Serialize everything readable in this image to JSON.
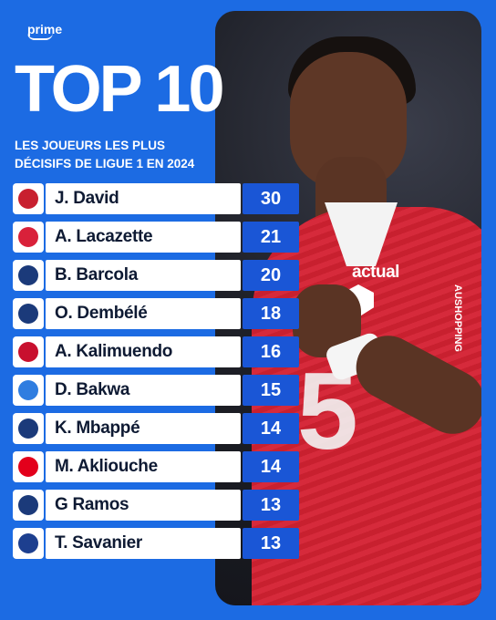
{
  "brand": {
    "name": "prime"
  },
  "header": {
    "title": "TOP 10",
    "subtitle_line1": "LES JOUEURS LES PLUS",
    "subtitle_line2": "DÉCISIFS DE LIGUE 1 EN 2024"
  },
  "photo": {
    "sponsor": "actual",
    "shirt_number": "5",
    "side_text": "AUSHOPPING"
  },
  "players": [
    {
      "name": "J. David",
      "value": "30",
      "club_icon": "lille-crest-icon",
      "club_color": "#c8202f"
    },
    {
      "name": "A. Lacazette",
      "value": "21",
      "club_icon": "lyon-crest-icon",
      "club_color": "#d9213a"
    },
    {
      "name": "B. Barcola",
      "value": "20",
      "club_icon": "psg-crest-icon",
      "club_color": "#1b3a7a"
    },
    {
      "name": "O. Dembélé",
      "value": "18",
      "club_icon": "psg-crest-icon",
      "club_color": "#1b3a7a"
    },
    {
      "name": "A. Kalimuendo",
      "value": "16",
      "club_icon": "rennes-crest-icon",
      "club_color": "#c8102e"
    },
    {
      "name": "D. Bakwa",
      "value": "15",
      "club_icon": "strasbourg-crest-icon",
      "club_color": "#2f7de0"
    },
    {
      "name": "K. Mbappé",
      "value": "14",
      "club_icon": "psg-crest-icon",
      "club_color": "#1b3a7a"
    },
    {
      "name": "M. Akliouche",
      "value": "14",
      "club_icon": "monaco-crest-icon",
      "club_color": "#e3001b"
    },
    {
      "name": "G Ramos",
      "value": "13",
      "club_icon": "psg-crest-icon",
      "club_color": "#1b3a7a"
    },
    {
      "name": "T. Savanier",
      "value": "13",
      "club_icon": "montpellier-crest-icon",
      "club_color": "#1d3f8f"
    }
  ]
}
